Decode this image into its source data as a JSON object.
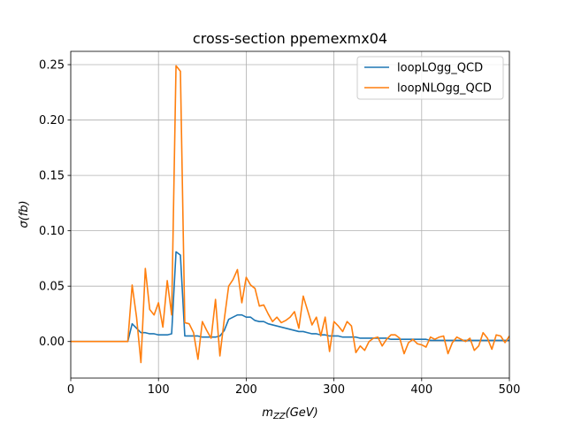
{
  "chart_data": {
    "type": "line",
    "title": "cross-section ppemexmx04",
    "xlabel_base": "m",
    "xlabel_sub": "ZZ",
    "xlabel_unit": "(GeV)",
    "ylabel": "σ(fb)",
    "xlim": [
      0,
      500
    ],
    "ylim": [
      -0.033,
      0.262
    ],
    "xticks": [
      0,
      100,
      200,
      300,
      400,
      500
    ],
    "yticks": [
      0.0,
      0.05,
      0.1,
      0.15,
      0.2,
      0.25
    ],
    "ytick_labels": [
      "0.00",
      "0.05",
      "0.10",
      "0.15",
      "0.20",
      "0.25"
    ],
    "grid": true,
    "legend_position": "upper-right",
    "series": [
      {
        "name": "loopLOgg_QCD",
        "color": "#1f77b4",
        "x": [
          0,
          5,
          10,
          15,
          20,
          25,
          30,
          35,
          40,
          45,
          50,
          55,
          60,
          65,
          70,
          75,
          80,
          85,
          90,
          95,
          100,
          105,
          110,
          115,
          120,
          125,
          130,
          135,
          140,
          145,
          150,
          155,
          160,
          165,
          170,
          175,
          180,
          185,
          190,
          195,
          200,
          205,
          210,
          215,
          220,
          225,
          230,
          235,
          240,
          245,
          250,
          255,
          260,
          265,
          270,
          275,
          280,
          285,
          290,
          295,
          300,
          305,
          310,
          315,
          320,
          325,
          330,
          335,
          340,
          345,
          350,
          355,
          360,
          365,
          370,
          375,
          380,
          385,
          390,
          395,
          400,
          405,
          410,
          415,
          420,
          425,
          430,
          435,
          440,
          445,
          450,
          455,
          460,
          465,
          470,
          475,
          480,
          485,
          490,
          495,
          500
        ],
        "y": [
          0.0,
          0.0,
          0.0,
          0.0,
          0.0,
          0.0,
          0.0,
          0.0,
          0.0,
          0.0,
          0.0,
          0.0,
          0.0,
          0.0,
          0.016,
          0.012,
          0.008,
          0.008,
          0.007,
          0.007,
          0.006,
          0.006,
          0.006,
          0.007,
          0.081,
          0.078,
          0.005,
          0.005,
          0.005,
          0.005,
          0.004,
          0.004,
          0.004,
          0.004,
          0.005,
          0.01,
          0.02,
          0.022,
          0.024,
          0.024,
          0.022,
          0.022,
          0.019,
          0.018,
          0.018,
          0.016,
          0.015,
          0.014,
          0.013,
          0.012,
          0.011,
          0.01,
          0.009,
          0.009,
          0.008,
          0.007,
          0.007,
          0.006,
          0.006,
          0.005,
          0.005,
          0.005,
          0.004,
          0.004,
          0.004,
          0.004,
          0.003,
          0.003,
          0.003,
          0.003,
          0.003,
          0.003,
          0.003,
          0.002,
          0.002,
          0.002,
          0.002,
          0.002,
          0.002,
          0.002,
          0.002,
          0.002,
          0.001,
          0.001,
          0.001,
          0.001,
          0.001,
          0.001,
          0.001,
          0.001,
          0.001,
          0.001,
          0.001,
          0.001,
          0.001,
          0.001,
          0.001,
          0.001,
          0.001,
          0.001,
          0.001
        ]
      },
      {
        "name": "loopNLOgg_QCD",
        "color": "#ff7f0e",
        "x": [
          0,
          5,
          10,
          15,
          20,
          25,
          30,
          35,
          40,
          45,
          50,
          55,
          60,
          65,
          70,
          75,
          80,
          85,
          90,
          95,
          100,
          105,
          110,
          115,
          120,
          125,
          130,
          135,
          140,
          145,
          150,
          155,
          160,
          165,
          170,
          175,
          180,
          185,
          190,
          195,
          200,
          205,
          210,
          215,
          220,
          225,
          230,
          235,
          240,
          245,
          250,
          255,
          260,
          265,
          270,
          275,
          280,
          285,
          290,
          295,
          300,
          305,
          310,
          315,
          320,
          325,
          330,
          335,
          340,
          345,
          350,
          355,
          360,
          365,
          370,
          375,
          380,
          385,
          390,
          395,
          400,
          405,
          410,
          415,
          420,
          425,
          430,
          435,
          440,
          445,
          450,
          455,
          460,
          465,
          470,
          475,
          480,
          485,
          490,
          495,
          500
        ],
        "y": [
          0.0,
          0.0,
          0.0,
          0.0,
          0.0,
          0.0,
          0.0,
          0.0,
          0.0,
          0.0,
          0.0,
          0.0,
          0.0,
          0.0,
          0.051,
          0.022,
          -0.019,
          0.066,
          0.029,
          0.024,
          0.035,
          0.013,
          0.055,
          0.024,
          0.249,
          0.244,
          0.017,
          0.016,
          0.008,
          -0.016,
          0.018,
          0.01,
          0.003,
          0.038,
          -0.013,
          0.02,
          0.05,
          0.056,
          0.065,
          0.035,
          0.058,
          0.051,
          0.048,
          0.032,
          0.033,
          0.025,
          0.018,
          0.022,
          0.017,
          0.019,
          0.022,
          0.027,
          0.012,
          0.041,
          0.028,
          0.015,
          0.022,
          0.005,
          0.022,
          -0.009,
          0.018,
          0.014,
          0.009,
          0.018,
          0.014,
          -0.01,
          -0.004,
          -0.008,
          0.0,
          0.003,
          0.004,
          -0.004,
          0.002,
          0.006,
          0.006,
          0.003,
          -0.011,
          -0.001,
          0.002,
          -0.002,
          -0.003,
          -0.005,
          0.004,
          0.002,
          0.004,
          0.005,
          -0.011,
          -0.001,
          0.004,
          0.002,
          0.0,
          0.003,
          -0.008,
          -0.004,
          0.008,
          0.003,
          -0.007,
          0.006,
          0.005,
          -0.001,
          0.005
        ]
      }
    ]
  }
}
